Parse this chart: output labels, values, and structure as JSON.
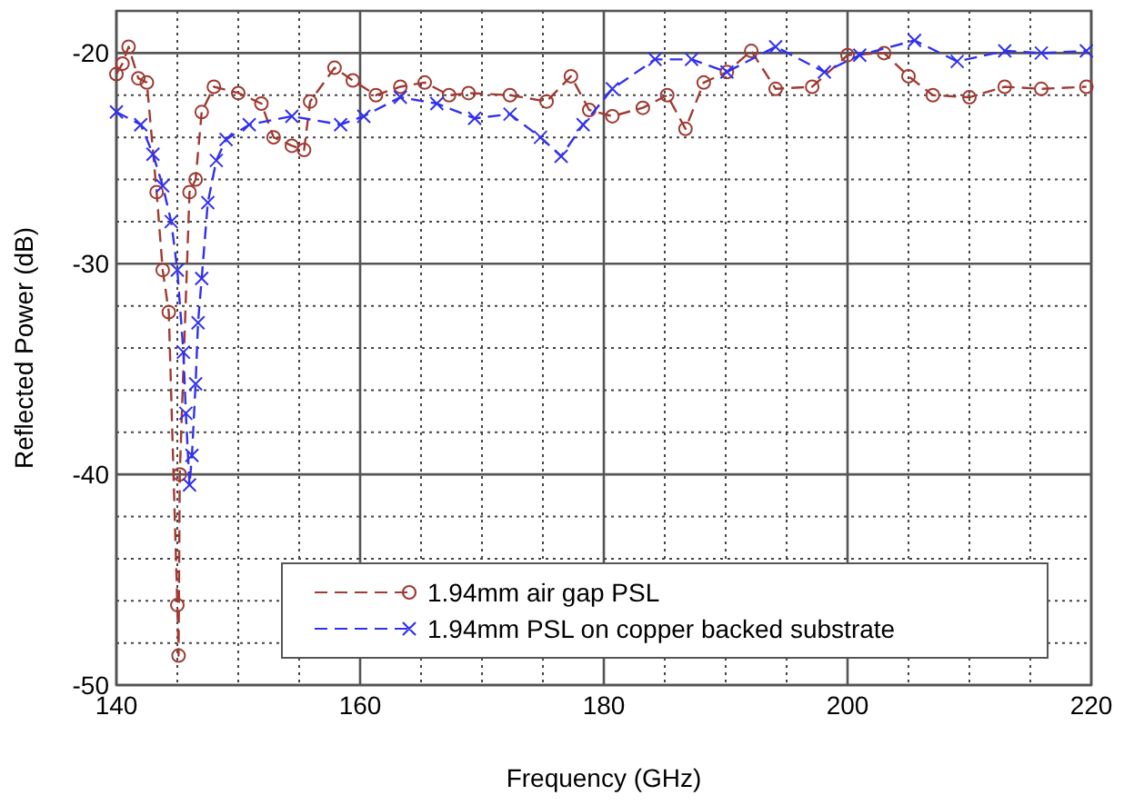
{
  "chart_data": {
    "type": "line",
    "xlabel": "Frequency (GHz)",
    "ylabel": "Reflected Power (dB)",
    "xlim": [
      140,
      220
    ],
    "ylim": [
      -50,
      -18
    ],
    "xticks": [
      140,
      {
        "value": 145,
        "label": null
      },
      {
        "value": 150,
        "label": null
      },
      {
        "value": 155,
        "label": null
      },
      160,
      {
        "value": 165,
        "label": null
      },
      {
        "value": 170,
        "label": null
      },
      {
        "value": 175,
        "label": null
      },
      180,
      {
        "value": 185,
        "label": null
      },
      {
        "value": 190,
        "label": null
      },
      {
        "value": 195,
        "label": null
      },
      200,
      {
        "value": 205,
        "label": null
      },
      {
        "value": 210,
        "label": null
      },
      {
        "value": 215,
        "label": null
      },
      220
    ],
    "yticks": [
      -50,
      {
        "value": -48,
        "label": null
      },
      {
        "value": -46,
        "label": null
      },
      {
        "value": -44,
        "label": null
      },
      {
        "value": -42,
        "label": null
      },
      -40,
      {
        "value": -38,
        "label": null
      },
      {
        "value": -36,
        "label": null
      },
      {
        "value": -34,
        "label": null
      },
      {
        "value": -32,
        "label": null
      },
      -30,
      {
        "value": -28,
        "label": null
      },
      {
        "value": -26,
        "label": null
      },
      {
        "value": -24,
        "label": null
      },
      {
        "value": -22,
        "label": null
      },
      -20,
      {
        "value": -18,
        "label": null
      }
    ],
    "grid": true,
    "legend": "bottom right",
    "series": [
      {
        "name": "1.94mm air gap PSL",
        "color": "#a03a32",
        "marker": "circle",
        "line_style": "dashed",
        "x": [
          140,
          140.5,
          141,
          141.8,
          142.5,
          143.3,
          143.8,
          144.3,
          145,
          145.1,
          145.2,
          146,
          146.5,
          147,
          148,
          150,
          151.9,
          152.9,
          154.4,
          155.4,
          155.9,
          157.9,
          159.4,
          161.3,
          163.3,
          165.3,
          167.3,
          168.9,
          172.3,
          175.3,
          177.3,
          178.8,
          180.7,
          183.2,
          185.2,
          186.7,
          188.2,
          190.1,
          192.1,
          194.1,
          197.1,
          200,
          203,
          205,
          207,
          210,
          212.9,
          215.9,
          219.6
        ],
        "values": [
          -21,
          -20.5,
          -19.7,
          -21.2,
          -21.4,
          -26.6,
          -30.3,
          -32.3,
          -46.2,
          -48.6,
          -40,
          -26.6,
          -26,
          -22.8,
          -21.6,
          -21.9,
          -22.4,
          -24,
          -24.4,
          -24.6,
          -22.3,
          -20.7,
          -21.3,
          -22,
          -21.6,
          -21.4,
          -22,
          -21.9,
          -22,
          -22.3,
          -21.1,
          -22.7,
          -23,
          -22.6,
          -22,
          -23.6,
          -21.4,
          -20.9,
          -19.9,
          -21.7,
          -21.6,
          -20.1,
          -20,
          -21.1,
          -22,
          -22.1,
          -21.6,
          -21.7,
          -21.6
        ]
      },
      {
        "name": "1.94mm PSL on copper backed substrate",
        "color": "#3030f0",
        "marker": "cross",
        "line_style": "dashed",
        "x": [
          140,
          142,
          143,
          143.8,
          144.5,
          145,
          145.5,
          145.7,
          146,
          146.2,
          146.5,
          146.7,
          147,
          147.5,
          148.2,
          149,
          150.9,
          154.4,
          158.4,
          160.3,
          163.3,
          166.3,
          169.4,
          172.3,
          174.8,
          176.5,
          178.3,
          180.7,
          184.2,
          187.2,
          190.1,
          194.1,
          198.1,
          201,
          205.5,
          209,
          212.9,
          215.9,
          219.6
        ],
        "values": [
          -22.8,
          -23.4,
          -24.8,
          -26.3,
          -28,
          -30.3,
          -34.2,
          -37.1,
          -40.5,
          -39.1,
          -35.7,
          -32.8,
          -30.7,
          -27.1,
          -25.1,
          -24.1,
          -23.4,
          -23,
          -23.4,
          -23,
          -22.1,
          -22.4,
          -23.1,
          -22.9,
          -24,
          -24.9,
          -23.4,
          -21.7,
          -20.3,
          -20.3,
          -20.9,
          -19.7,
          -20.9,
          -20.1,
          -19.4,
          -20.4,
          -19.9,
          -20,
          -19.9
        ]
      }
    ]
  }
}
